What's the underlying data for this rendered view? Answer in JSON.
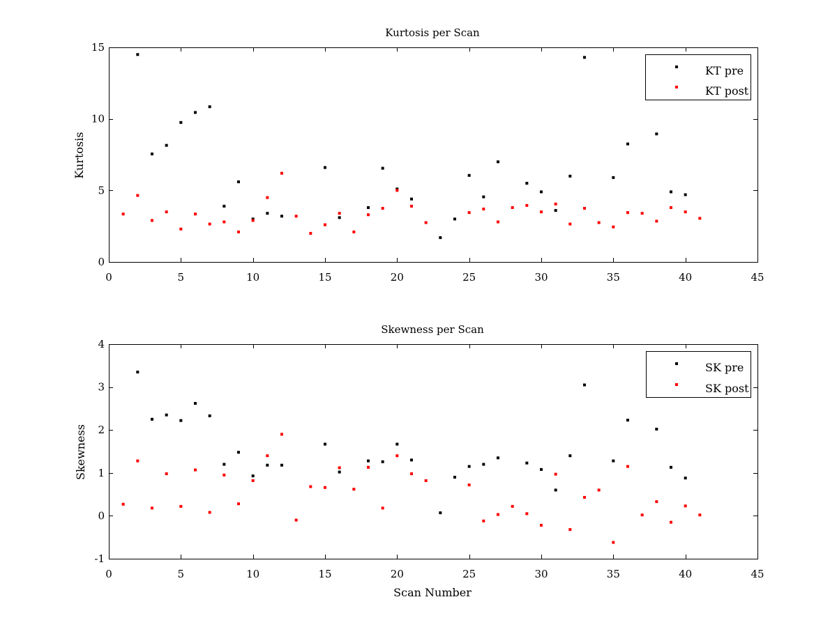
{
  "colors": {
    "pre": "#000000",
    "post": "#ff0000"
  },
  "chart_data": [
    {
      "type": "scatter",
      "title": "Kurtosis per Scan",
      "xlabel": "",
      "ylabel": "Kurtosis",
      "xlim": [
        0,
        45
      ],
      "ylim": [
        0,
        15
      ],
      "xticks": [
        0,
        5,
        10,
        15,
        20,
        25,
        30,
        35,
        40,
        45
      ],
      "yticks": [
        0,
        5,
        10,
        15
      ],
      "grid": false,
      "legend": "top-right",
      "series": [
        {
          "name": "KT pre",
          "color": "#000000",
          "points": [
            [
              2,
              14.5
            ],
            [
              3,
              7.55
            ],
            [
              4,
              8.15
            ],
            [
              5,
              9.75
            ],
            [
              6,
              10.45
            ],
            [
              7,
              10.85
            ],
            [
              8,
              3.9
            ],
            [
              9,
              5.6
            ],
            [
              10,
              3.0
            ],
            [
              11,
              3.4
            ],
            [
              12,
              3.2
            ],
            [
              15,
              6.6
            ],
            [
              16,
              3.1
            ],
            [
              18,
              3.8
            ],
            [
              19,
              6.55
            ],
            [
              20,
              5.1
            ],
            [
              21,
              4.4
            ],
            [
              23,
              1.7
            ],
            [
              24,
              3.0
            ],
            [
              25,
              6.05
            ],
            [
              26,
              4.55
            ],
            [
              27,
              7.0
            ],
            [
              29,
              5.5
            ],
            [
              30,
              4.9
            ],
            [
              31,
              3.6
            ],
            [
              32,
              6.0
            ],
            [
              33,
              14.3
            ],
            [
              35,
              5.9
            ],
            [
              36,
              8.25
            ],
            [
              38,
              8.95
            ],
            [
              39,
              4.9
            ],
            [
              40,
              4.7
            ]
          ]
        },
        {
          "name": "KT post",
          "color": "#ff0000",
          "points": [
            [
              1,
              3.35
            ],
            [
              2,
              4.65
            ],
            [
              3,
              2.9
            ],
            [
              4,
              3.5
            ],
            [
              5,
              2.3
            ],
            [
              6,
              3.35
            ],
            [
              7,
              2.65
            ],
            [
              8,
              2.8
            ],
            [
              9,
              2.1
            ],
            [
              10,
              2.9
            ],
            [
              11,
              4.5
            ],
            [
              12,
              6.2
            ],
            [
              13,
              3.2
            ],
            [
              14,
              2.0
            ],
            [
              15,
              2.6
            ],
            [
              16,
              3.4
            ],
            [
              17,
              2.1
            ],
            [
              18,
              3.3
            ],
            [
              19,
              3.75
            ],
            [
              20,
              5.0
            ],
            [
              21,
              3.9
            ],
            [
              22,
              2.75
            ],
            [
              25,
              3.45
            ],
            [
              26,
              3.7
            ],
            [
              27,
              2.8
            ],
            [
              28,
              3.8
            ],
            [
              29,
              3.95
            ],
            [
              30,
              3.5
            ],
            [
              31,
              4.05
            ],
            [
              32,
              2.65
            ],
            [
              33,
              3.75
            ],
            [
              34,
              2.75
            ],
            [
              35,
              2.45
            ],
            [
              36,
              3.45
            ],
            [
              37,
              3.4
            ],
            [
              38,
              2.85
            ],
            [
              39,
              3.8
            ],
            [
              40,
              3.5
            ],
            [
              41,
              3.05
            ]
          ]
        }
      ]
    },
    {
      "type": "scatter",
      "title": "Skewness per Scan",
      "xlabel": "Scan Number",
      "ylabel": "Skewness",
      "xlim": [
        0,
        45
      ],
      "ylim": [
        -1,
        4
      ],
      "xticks": [
        0,
        5,
        10,
        15,
        20,
        25,
        30,
        35,
        40,
        45
      ],
      "yticks": [
        -1,
        0,
        1,
        2,
        3,
        4
      ],
      "grid": false,
      "legend": "top-right",
      "series": [
        {
          "name": "SK pre",
          "color": "#000000",
          "points": [
            [
              2,
              3.35
            ],
            [
              3,
              2.25
            ],
            [
              4,
              2.35
            ],
            [
              5,
              2.22
            ],
            [
              6,
              2.62
            ],
            [
              7,
              2.33
            ],
            [
              8,
              1.2
            ],
            [
              9,
              1.48
            ],
            [
              10,
              0.93
            ],
            [
              11,
              1.18
            ],
            [
              12,
              1.18
            ],
            [
              15,
              1.67
            ],
            [
              16,
              1.02
            ],
            [
              18,
              1.28
            ],
            [
              19,
              1.26
            ],
            [
              20,
              1.67
            ],
            [
              21,
              1.3
            ],
            [
              23,
              0.07
            ],
            [
              24,
              0.9
            ],
            [
              25,
              1.15
            ],
            [
              26,
              1.2
            ],
            [
              27,
              1.35
            ],
            [
              29,
              1.23
            ],
            [
              30,
              1.08
            ],
            [
              31,
              0.6
            ],
            [
              32,
              1.4
            ],
            [
              33,
              3.05
            ],
            [
              35,
              1.28
            ],
            [
              36,
              2.23
            ],
            [
              38,
              2.02
            ],
            [
              39,
              1.13
            ],
            [
              40,
              0.88
            ]
          ]
        },
        {
          "name": "SK post",
          "color": "#ff0000",
          "points": [
            [
              1,
              0.27
            ],
            [
              2,
              1.28
            ],
            [
              3,
              0.18
            ],
            [
              4,
              0.98
            ],
            [
              5,
              0.22
            ],
            [
              6,
              1.07
            ],
            [
              7,
              0.08
            ],
            [
              8,
              0.95
            ],
            [
              9,
              0.28
            ],
            [
              10,
              0.82
            ],
            [
              11,
              1.4
            ],
            [
              12,
              1.9
            ],
            [
              13,
              -0.1
            ],
            [
              14,
              0.68
            ],
            [
              15,
              0.66
            ],
            [
              16,
              1.12
            ],
            [
              17,
              0.62
            ],
            [
              18,
              1.13
            ],
            [
              19,
              0.18
            ],
            [
              20,
              1.4
            ],
            [
              21,
              0.98
            ],
            [
              22,
              0.82
            ],
            [
              25,
              0.72
            ],
            [
              26,
              -0.12
            ],
            [
              27,
              0.03
            ],
            [
              28,
              0.22
            ],
            [
              29,
              0.05
            ],
            [
              30,
              -0.22
            ],
            [
              31,
              0.97
            ],
            [
              32,
              -0.32
            ],
            [
              33,
              0.43
            ],
            [
              34,
              0.6
            ],
            [
              35,
              -0.62
            ],
            [
              36,
              1.15
            ],
            [
              37,
              0.02
            ],
            [
              38,
              0.33
            ],
            [
              39,
              -0.15
            ],
            [
              40,
              0.23
            ],
            [
              41,
              0.02
            ]
          ]
        }
      ]
    }
  ]
}
